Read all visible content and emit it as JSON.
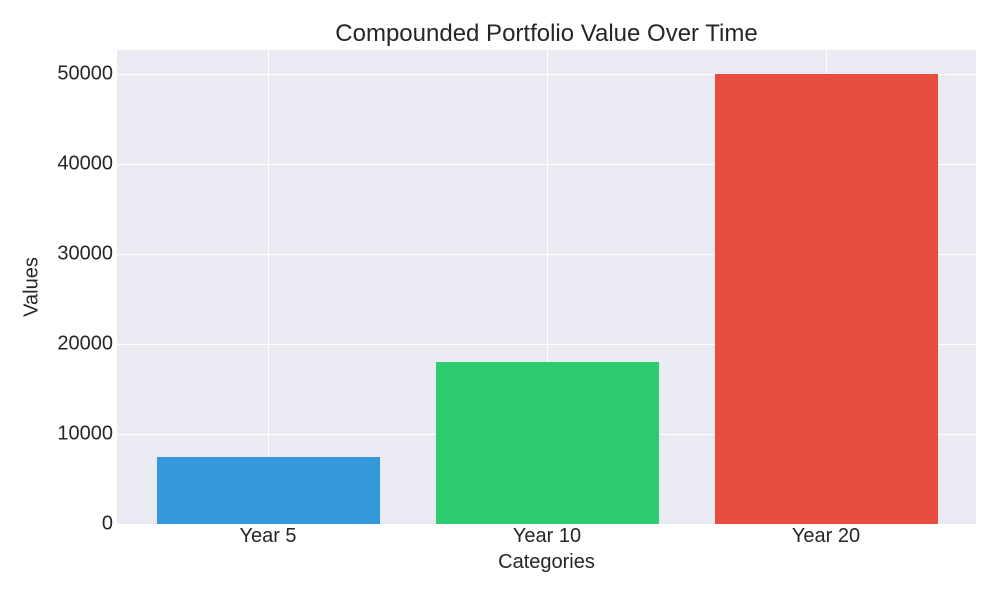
{
  "chart_data": {
    "type": "bar",
    "title": "Compounded Portfolio Value Over Time",
    "xlabel": "Categories",
    "ylabel": "Values",
    "categories": [
      "Year 5",
      "Year 10",
      "Year 20"
    ],
    "values": [
      7500,
      18000,
      50000
    ],
    "colors": [
      "#3498DB",
      "#2ECC71",
      "#E74C3C"
    ],
    "ylim": [
      0,
      52700
    ],
    "yticks": [
      "0",
      "10000",
      "20000",
      "30000",
      "40000",
      "50000"
    ],
    "grid": true,
    "legend": null
  }
}
